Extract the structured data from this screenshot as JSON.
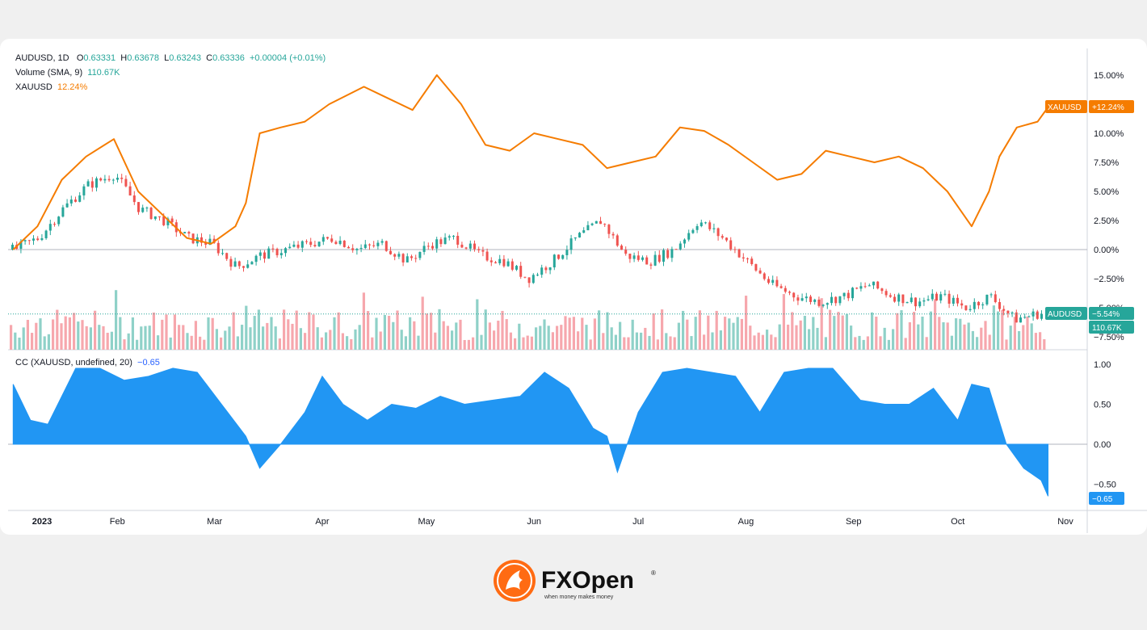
{
  "legend": {
    "symbol": "AUDUSD, 1D",
    "open_label": "O",
    "open": "0.63331",
    "high_label": "H",
    "high": "0.63678",
    "low_label": "L",
    "low": "0.63243",
    "close_label": "C",
    "close": "0.63336",
    "change": "+0.00004 (+0.01%)",
    "volume_name": "Volume (SMA, 9)",
    "volume_value": "110.67K",
    "overlay_name": "XAUUSD",
    "overlay_value": "12.24%",
    "cc_name": "CC (XAUUSD, undefined, 20)",
    "cc_value": "−0.65"
  },
  "badges": {
    "xauusd_name": "XAUUSD",
    "xauusd_value": "+12.24%",
    "audusd_name": "AUDUSD",
    "audusd_value": "−5.54%",
    "volume_value": "110.67K",
    "cc_value": "−0.65"
  },
  "colors": {
    "up": "#26a69a",
    "down": "#ef5350",
    "overlay": "#f57c00",
    "cc": "#2196f3",
    "vol_up": "#8fd1c8",
    "vol_down": "#f6a7ad",
    "brand": "#ff6b13"
  },
  "logo": {
    "brand": "FXOpen",
    "tagline": "when money makes money",
    "mark": "®"
  },
  "chart_data": [
    {
      "type": "line",
      "name": "XAUUSD",
      "unit": "percent",
      "x": [
        "2023-01-02",
        "2023-01-09",
        "2023-01-16",
        "2023-01-23",
        "2023-01-31",
        "2023-02-07",
        "2023-02-14",
        "2023-02-21",
        "2023-02-28",
        "2023-03-07",
        "2023-03-10",
        "2023-03-14",
        "2023-03-20",
        "2023-03-27",
        "2023-04-03",
        "2023-04-13",
        "2023-04-20",
        "2023-04-27",
        "2023-05-04",
        "2023-05-11",
        "2023-05-18",
        "2023-05-25",
        "2023-06-01",
        "2023-06-08",
        "2023-06-15",
        "2023-06-22",
        "2023-06-29",
        "2023-07-06",
        "2023-07-13",
        "2023-07-20",
        "2023-07-27",
        "2023-08-03",
        "2023-08-10",
        "2023-08-17",
        "2023-08-24",
        "2023-08-31",
        "2023-09-07",
        "2023-09-14",
        "2023-09-21",
        "2023-09-28",
        "2023-10-05",
        "2023-10-10",
        "2023-10-13",
        "2023-10-18",
        "2023-10-24",
        "2023-10-27"
      ],
      "y": [
        0,
        2,
        6,
        8,
        9.5,
        5,
        3,
        1,
        0.5,
        2,
        4,
        10,
        10.5,
        11,
        12.5,
        14,
        13,
        12,
        15,
        12.5,
        9,
        8.5,
        10,
        9.5,
        9,
        7,
        7.5,
        8,
        10.5,
        10.2,
        9,
        7.5,
        6,
        6.5,
        8.5,
        8,
        7.5,
        8,
        7,
        5,
        2,
        5,
        8,
        10.5,
        11,
        12.24
      ]
    },
    {
      "type": "candlestick",
      "name": "AUDUSD",
      "unit": "percent change",
      "x": [
        "2023-01-02",
        "2023-01-09",
        "2023-01-16",
        "2023-01-23",
        "2023-01-31",
        "2023-02-07",
        "2023-02-14",
        "2023-02-21",
        "2023-02-28",
        "2023-03-07",
        "2023-03-14",
        "2023-03-21",
        "2023-03-28",
        "2023-04-04",
        "2023-04-11",
        "2023-04-18",
        "2023-04-25",
        "2023-05-02",
        "2023-05-09",
        "2023-05-16",
        "2023-05-23",
        "2023-05-30",
        "2023-06-06",
        "2023-06-13",
        "2023-06-20",
        "2023-06-27",
        "2023-07-04",
        "2023-07-11",
        "2023-07-18",
        "2023-07-25",
        "2023-08-01",
        "2023-08-08",
        "2023-08-15",
        "2023-08-22",
        "2023-08-29",
        "2023-09-05",
        "2023-09-12",
        "2023-09-19",
        "2023-09-26",
        "2023-10-03",
        "2023-10-10",
        "2023-10-17",
        "2023-10-24",
        "2023-10-27"
      ],
      "y": [
        0,
        1,
        3.5,
        5.5,
        6.5,
        3.5,
        2.5,
        1,
        0.5,
        -1.5,
        -0.5,
        0,
        0.5,
        1,
        0,
        0.5,
        -1,
        0.5,
        1,
        -0.5,
        -1,
        -2.5,
        -1,
        1,
        2.5,
        -0.5,
        -1,
        0,
        2.5,
        1,
        -1,
        -3,
        -4,
        -4.5,
        -4,
        -3,
        -4,
        -4.5,
        -4,
        -5,
        -4,
        -6,
        -5.5,
        -5.54
      ]
    },
    {
      "type": "bar",
      "name": "Volume (SMA, 9)",
      "last_value": "110.67K"
    },
    {
      "type": "area",
      "name": "CC (XAUUSD, undefined, 20)",
      "x": [
        "2023-01-02",
        "2023-01-07",
        "2023-01-12",
        "2023-01-20",
        "2023-01-27",
        "2023-02-03",
        "2023-02-10",
        "2023-02-17",
        "2023-02-24",
        "2023-03-03",
        "2023-03-10",
        "2023-03-14",
        "2023-03-20",
        "2023-03-27",
        "2023-04-01",
        "2023-04-07",
        "2023-04-14",
        "2023-04-21",
        "2023-04-28",
        "2023-05-05",
        "2023-05-12",
        "2023-05-20",
        "2023-05-28",
        "2023-06-04",
        "2023-06-11",
        "2023-06-18",
        "2023-06-22",
        "2023-06-25",
        "2023-07-01",
        "2023-07-08",
        "2023-07-15",
        "2023-07-22",
        "2023-07-29",
        "2023-08-05",
        "2023-08-12",
        "2023-08-19",
        "2023-08-26",
        "2023-09-03",
        "2023-09-10",
        "2023-09-17",
        "2023-09-24",
        "2023-10-01",
        "2023-10-05",
        "2023-10-10",
        "2023-10-15",
        "2023-10-20",
        "2023-10-25",
        "2023-10-27"
      ],
      "y": [
        0.75,
        0.3,
        0.25,
        0.95,
        0.95,
        0.8,
        0.85,
        0.95,
        0.9,
        0.5,
        0.1,
        -0.3,
        0,
        0.4,
        0.85,
        0.5,
        0.3,
        0.5,
        0.45,
        0.6,
        0.5,
        0.55,
        0.6,
        0.9,
        0.7,
        0.2,
        0.1,
        -0.35,
        0.4,
        0.9,
        0.95,
        0.9,
        0.85,
        0.4,
        0.9,
        0.95,
        0.95,
        0.55,
        0.5,
        0.5,
        0.7,
        0.3,
        0.75,
        0.7,
        0,
        -0.3,
        -0.45,
        -0.65
      ]
    }
  ],
  "axes": {
    "main_y_ticks": [
      "15.00%",
      "12.50%",
      "10.00%",
      "7.50%",
      "5.00%",
      "2.50%",
      "0.00%",
      "−2.50%",
      "−5.00%",
      "−7.50%"
    ],
    "main_y_values": [
      15,
      12.5,
      10,
      7.5,
      5,
      2.5,
      0,
      -2.5,
      -5,
      -7.5
    ],
    "cc_y_ticks": [
      "1.00",
      "0.50",
      "0.00",
      "−0.50"
    ],
    "cc_y_values": [
      1,
      0.5,
      0,
      -0.5
    ],
    "x_ticks": [
      "2023",
      "Feb",
      "Mar",
      "Apr",
      "May",
      "Jun",
      "Jul",
      "Aug",
      "Sep",
      "Oct",
      "Nov"
    ],
    "x_tick_dates": [
      "2023-01-01",
      "2023-02-01",
      "2023-03-01",
      "2023-04-01",
      "2023-05-01",
      "2023-06-01",
      "2023-07-01",
      "2023-08-01",
      "2023-09-01",
      "2023-10-01",
      "2023-11-01"
    ]
  }
}
